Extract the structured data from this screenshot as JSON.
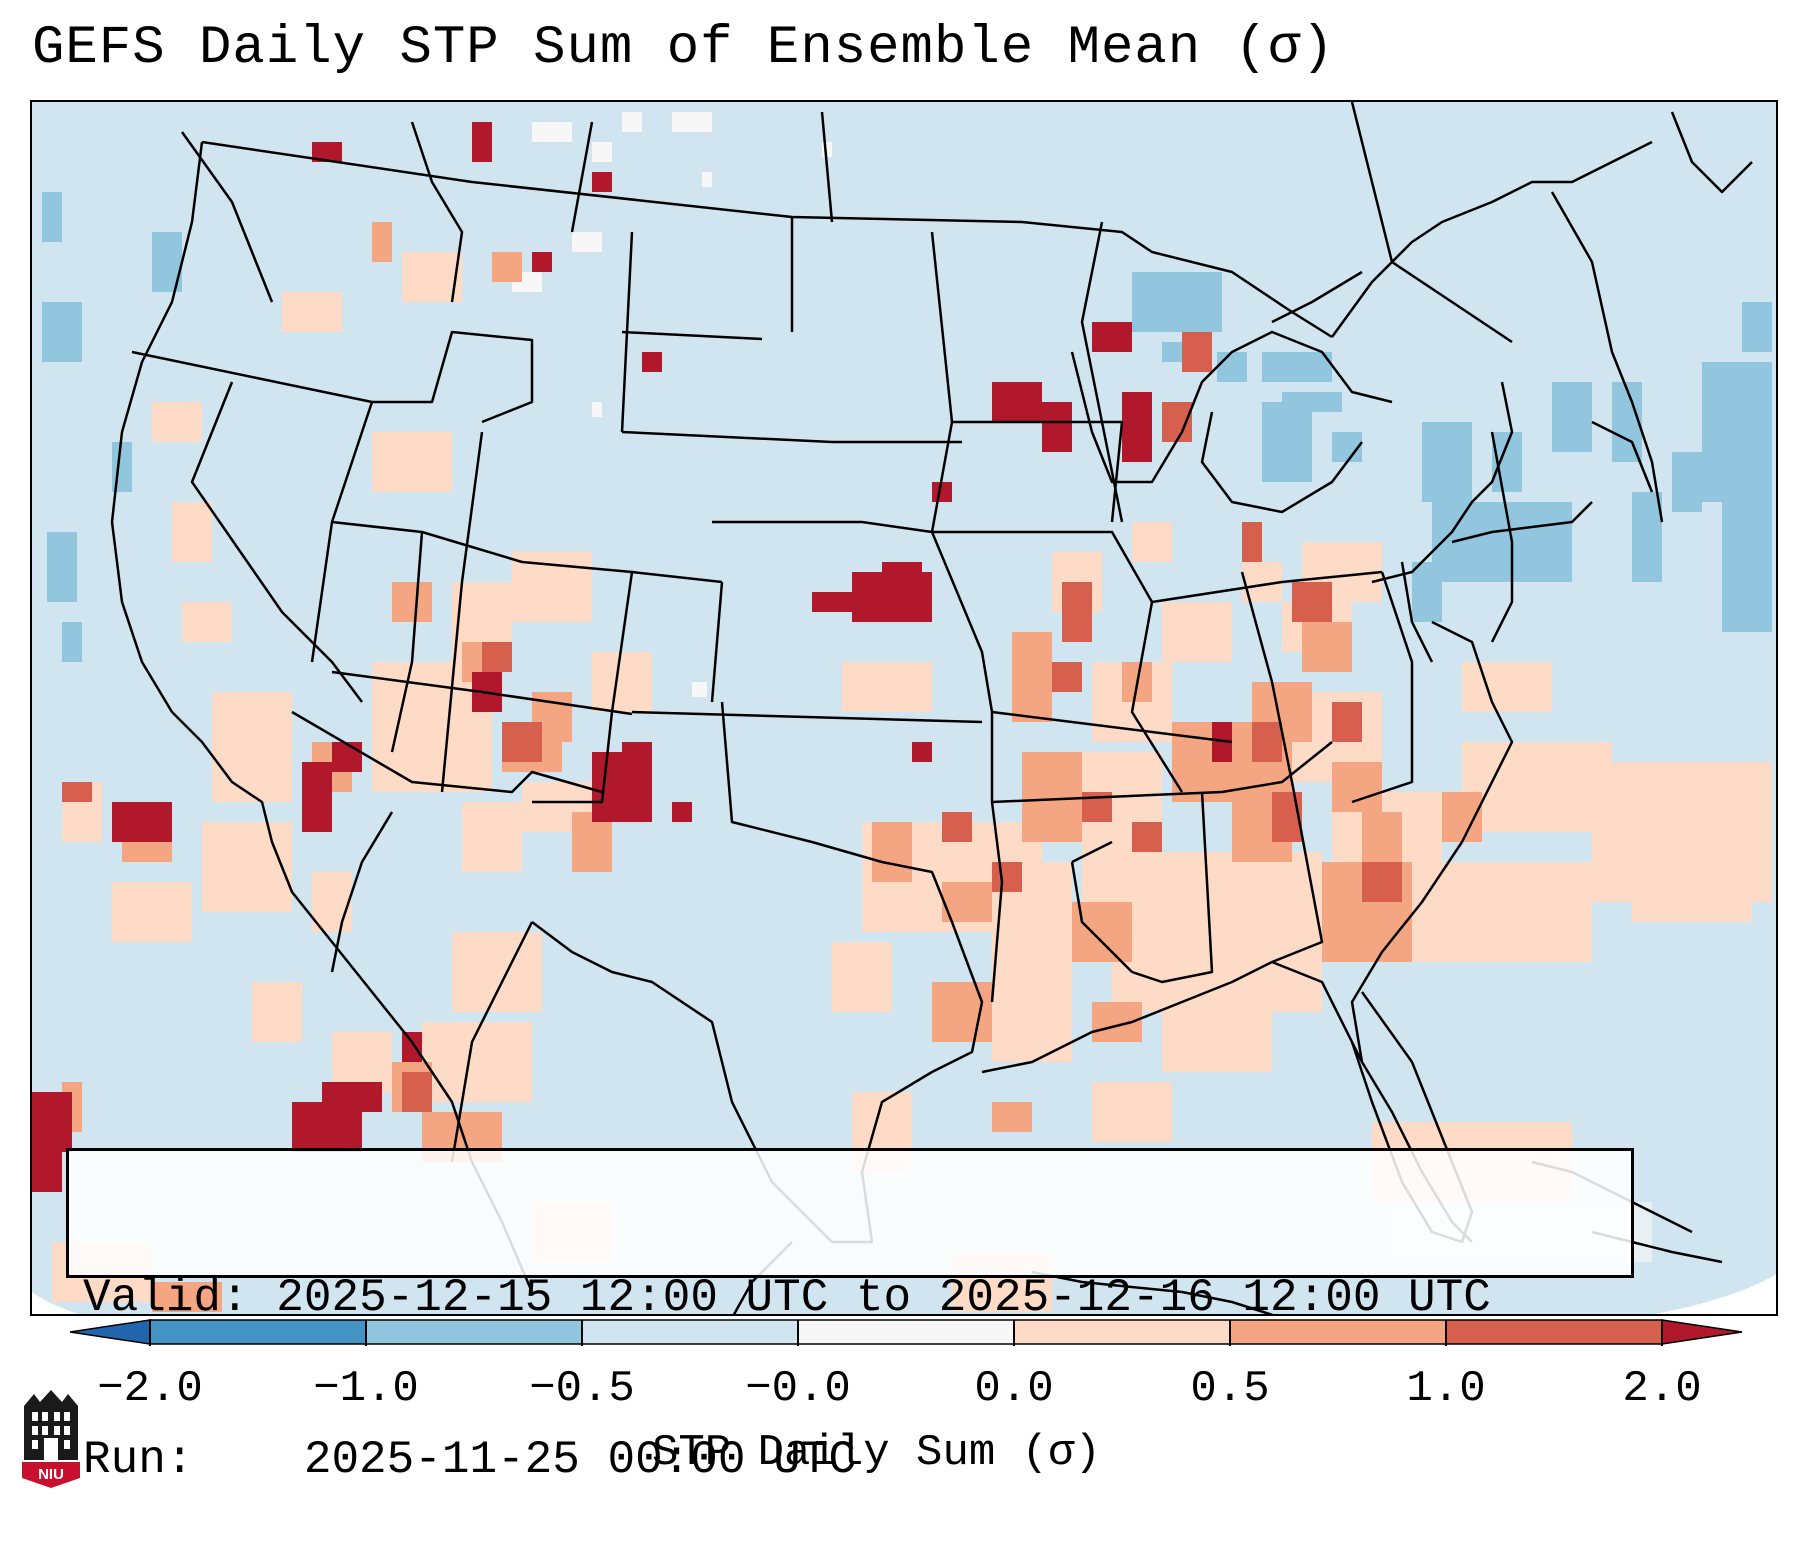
{
  "title": "GEFS Daily STP Sum of Ensemble Mean (σ)",
  "info": {
    "valid_label": "Valid:",
    "valid_value": "2025-12-15 12:00 UTC to 2025-12-16 12:00 UTC",
    "run_label": "Run:",
    "run_value": "2025-11-25 00:00 UTC"
  },
  "colorbar": {
    "label": "STP Daily Sum (σ)",
    "ticks": [
      "−2.0",
      "−1.0",
      "−0.5",
      "−0.0",
      "0.0",
      "0.5",
      "1.0",
      "2.0"
    ],
    "colors": {
      "under": "#2166ac",
      "c1": "#4393c3",
      "c2": "#92c5de",
      "c3": "#d1e5f0",
      "c4": "#f7f7f7",
      "c5": "#fddbc7",
      "c6": "#f4a582",
      "c7": "#d6604d",
      "over": "#b2182b"
    }
  },
  "map": {
    "background_color": "#d1e5f0",
    "border_color": "#000000"
  },
  "logo": {
    "text": "NIU",
    "icon": "niu-logo-icon"
  }
}
